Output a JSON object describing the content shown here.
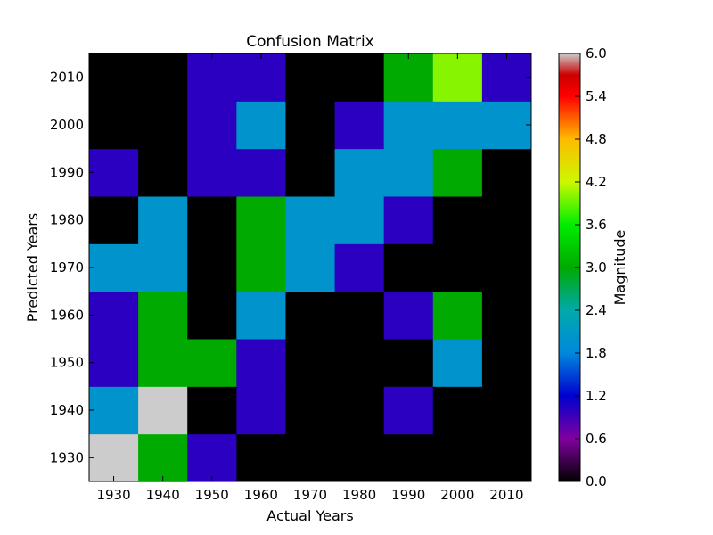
{
  "chart_data": {
    "type": "heatmap",
    "title": "Confusion Matrix",
    "xlabel": "Actual Years",
    "ylabel": "Predicted Years",
    "x_categories": [
      "1930",
      "1940",
      "1950",
      "1960",
      "1970",
      "1980",
      "1990",
      "2000",
      "2010"
    ],
    "y_categories": [
      "1930",
      "1940",
      "1950",
      "1960",
      "1970",
      "1980",
      "1990",
      "2000",
      "2010"
    ],
    "values": [
      [
        6,
        3,
        1,
        0,
        0,
        0,
        0,
        0,
        0
      ],
      [
        2,
        6,
        0,
        1,
        0,
        0,
        1,
        0,
        0
      ],
      [
        1,
        3,
        3,
        1,
        0,
        0,
        0,
        2,
        0
      ],
      [
        1,
        3,
        0,
        2,
        0,
        0,
        1,
        3,
        0
      ],
      [
        2,
        2,
        0,
        3,
        2,
        1,
        0,
        0,
        0
      ],
      [
        0,
        2,
        0,
        3,
        2,
        2,
        1,
        0,
        0
      ],
      [
        1,
        0,
        1,
        1,
        0,
        2,
        2,
        3,
        0
      ],
      [
        0,
        0,
        1,
        2,
        0,
        1,
        2,
        2,
        2
      ],
      [
        0,
        0,
        1,
        1,
        0,
        0,
        3,
        4,
        1
      ]
    ],
    "colorbar": {
      "label": "Magnitude",
      "min": 0.0,
      "max": 6.0,
      "ticks": [
        "0.0",
        "0.6",
        "1.2",
        "1.8",
        "2.4",
        "3.0",
        "3.6",
        "4.2",
        "4.8",
        "5.4",
        "6.0"
      ]
    },
    "colormap": "nipy_spectral"
  }
}
